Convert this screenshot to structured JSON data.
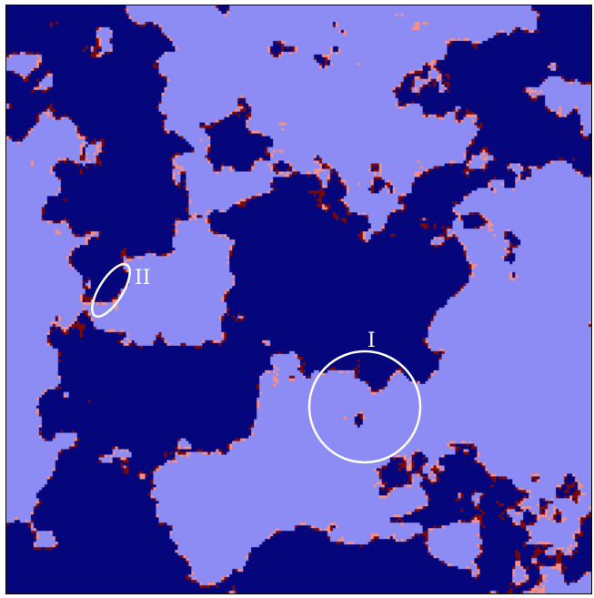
{
  "figure": {
    "colors": {
      "light_blue": "#8c8cf4",
      "dark_blue": "#06067c",
      "salmon": "#f58f8b",
      "dark_red": "#7a0808",
      "annotation": "#ffffff"
    },
    "annotations": [
      {
        "shape": "circle",
        "label": "I"
      },
      {
        "shape": "ellipse",
        "label": "II"
      }
    ]
  }
}
